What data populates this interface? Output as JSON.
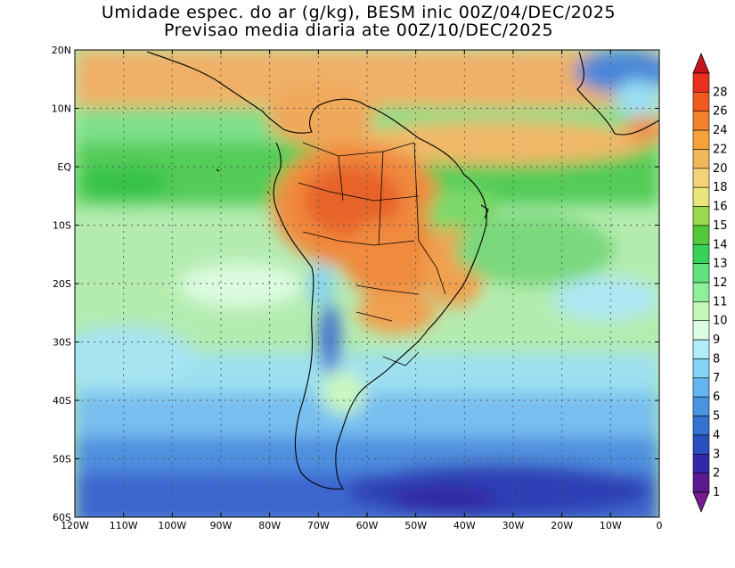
{
  "title": {
    "line1": "Umidade espec. do ar (g/kg), BESM inic 00Z/04/DEC/2025",
    "line2": "Previsao media diaria ate 00Z/10/DEC/2025"
  },
  "map": {
    "lat_labels": [
      "20N",
      "10N",
      "EQ",
      "10S",
      "20S",
      "30S",
      "40S",
      "50S",
      "60S"
    ],
    "lon_labels": [
      "120W",
      "110W",
      "100W",
      "90W",
      "80W",
      "70W",
      "60W",
      "50W",
      "40W",
      "30W",
      "20W",
      "10W",
      "0"
    ],
    "lon_range": [
      -120,
      0
    ],
    "lat_range": [
      -60,
      20
    ]
  },
  "colorbar": {
    "labels": [
      "28",
      "26",
      "24",
      "22",
      "20",
      "18",
      "16",
      "15",
      "14",
      "13",
      "12",
      "11",
      "10",
      "9",
      "8",
      "7",
      "6",
      "5",
      "4",
      "3",
      "2",
      "1"
    ],
    "colors": [
      "#e8301c",
      "#f05a1e",
      "#f5822c",
      "#f5a23a",
      "#f0b85a",
      "#f5d27a",
      "#e8e67a",
      "#9cd84e",
      "#52c83a",
      "#36d25a",
      "#62e27c",
      "#8ff09a",
      "#c4f7b8",
      "#dcfde2",
      "#b0ecfa",
      "#86d4f8",
      "#64b4f0",
      "#4a94e2",
      "#3472d2",
      "#2a50c0",
      "#3228a8",
      "#5a1a90"
    ],
    "top_cap_color": "#c8141e",
    "bottom_cap_color": "#781c8e"
  }
}
